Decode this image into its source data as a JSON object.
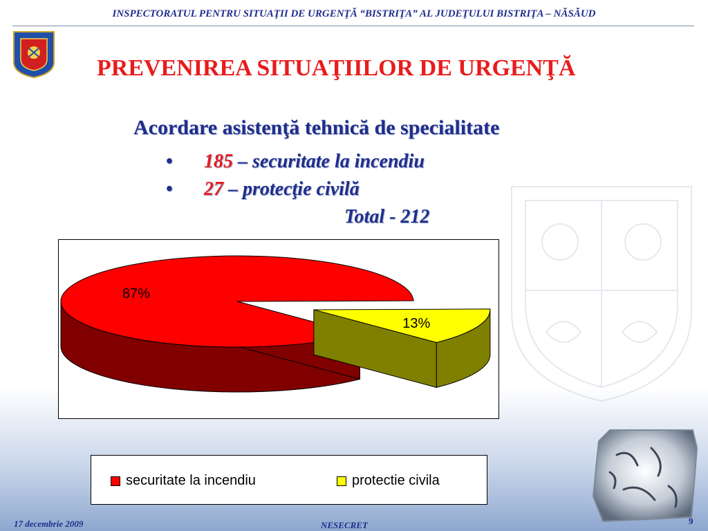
{
  "header": {
    "title": "INSPECTORATUL PENTRU SITUAŢII DE URGENŢĂ “BISTRIŢA” AL JUDEŢULUI   BISTRIŢA – NĂSĂUD"
  },
  "slide": {
    "title": "PREVENIREA SITUAŢIILOR DE URGENŢĂ",
    "heading": "Acordare  asistenţă tehnică de specialitate",
    "bullets": [
      {
        "marker": "•",
        "number": "185",
        "text": " – securitate la incendiu"
      },
      {
        "marker": "•",
        "number": "27",
        "text": " – protecţie civilă"
      }
    ],
    "total": "Total  - 212"
  },
  "chart_data": {
    "type": "pie",
    "categories": [
      "securitate la incendiu",
      "protectie civila"
    ],
    "values": [
      87,
      13
    ],
    "data_labels": [
      "87%",
      "13%"
    ],
    "colors": [
      "#ff0000",
      "#ffff00"
    ],
    "side_colors": [
      "#800000",
      "#808000"
    ],
    "legend": {
      "position": "bottom"
    },
    "title": ""
  },
  "footer": {
    "date": "17 decembrie 2009",
    "classification": "NESECRET",
    "page": "9"
  },
  "icons": {
    "logo": "coat-of-arms-icon",
    "decoration": "decorative-texture-icon"
  }
}
